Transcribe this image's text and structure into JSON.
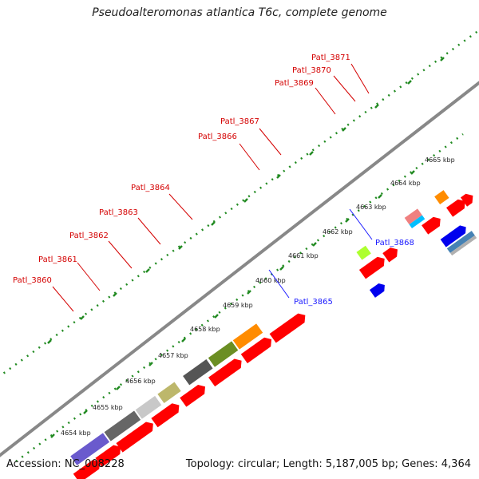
{
  "title": "Pseudoalteromonas atlantica T6c, complete genome",
  "accession": "Accession: NC_008228",
  "summary": "Topology: circular; Length: 5,187,005 bp; Genes: 4,364",
  "ruler": {
    "ticks": [
      "4654 kbp",
      "4655 kbp",
      "4656 kbp",
      "4657 kbp",
      "4658 kbp",
      "4659 kbp",
      "4660 kbp",
      "4661 kbp",
      "4662 kbp",
      "4663 kbp",
      "4664 kbp",
      "4665 kbp"
    ]
  },
  "gene_labels_top": [
    "Patl_3860",
    "Patl_3861",
    "Patl_3862",
    "Patl_3863",
    "Patl_3864",
    "Patl_3866",
    "Patl_3867",
    "Patl_3869",
    "Patl_3870",
    "Patl_3871"
  ],
  "gene_labels_bottom": [
    "Patl_3865",
    "Patl_3868"
  ],
  "colors": {
    "red": "#ff0000",
    "blue": "#0000ee",
    "backbone": "#888888",
    "dots": "#228b22",
    "label_red": "#d40000",
    "label_blue": "#1a1aff"
  }
}
